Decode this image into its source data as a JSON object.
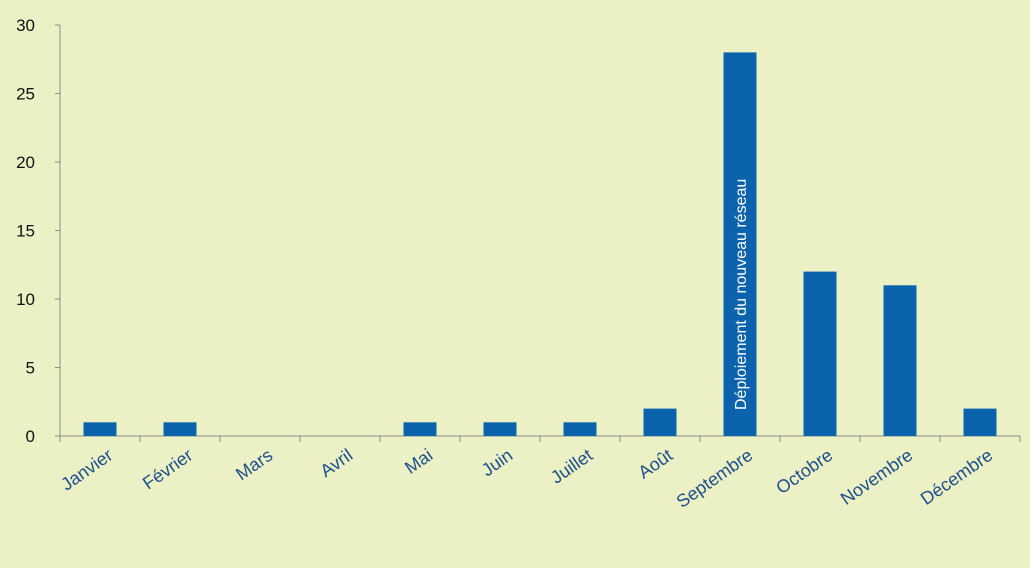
{
  "colors": {
    "background": "#EBF1C5",
    "bar": "#0B63AD",
    "axis": "#8C8C8C",
    "x_label": "#1F4E8C",
    "y_label": "#111111",
    "annotation": "#FFFFFF"
  },
  "chart_data": {
    "type": "bar",
    "categories": [
      "Janvier",
      "Février",
      "Mars",
      "Avril",
      "Mai",
      "Juin",
      "Juillet",
      "Août",
      "Septembre",
      "Octobre",
      "Novembre",
      "Décembre"
    ],
    "values": [
      1,
      1,
      0,
      0,
      1,
      1,
      1,
      2,
      28,
      12,
      11,
      2
    ],
    "ylim": [
      0,
      30
    ],
    "yticks": [
      0,
      5,
      10,
      15,
      20,
      25,
      30
    ],
    "grid": false,
    "legend": "none",
    "annotations": [
      {
        "category": "Septembre",
        "text": "Déploiement du nouveau réseau"
      }
    ]
  }
}
